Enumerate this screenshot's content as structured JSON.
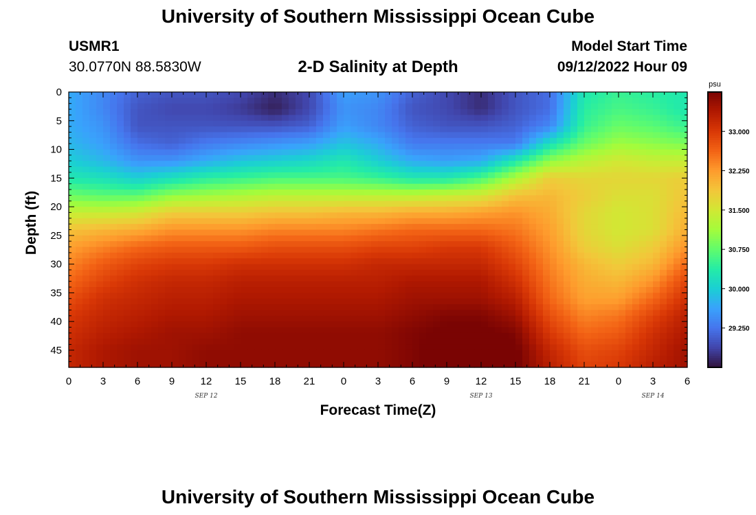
{
  "page": {
    "title": "University of Southern Mississippi Ocean Cube",
    "station_id": "USMR1",
    "coords": "30.0770N  88.5830W",
    "subtitle": "2-D Salinity at Depth",
    "model_start_label": "Model Start Time",
    "model_start_value": "09/12/2022 Hour 09",
    "footer_title": "University of Southern Mississippi Ocean Cube"
  },
  "colors": {
    "colormap": [
      "#30123b",
      "#4145ab",
      "#4675ed",
      "#39a2fc",
      "#1bcfd4",
      "#24eca6",
      "#61fc6c",
      "#a4fc3b",
      "#d1e834",
      "#f3c63a",
      "#fe9b2d",
      "#f36315",
      "#d93806",
      "#b11901",
      "#7a0403"
    ]
  },
  "chart_data": {
    "type": "heatmap",
    "xlabel": "Forecast Time(Z)",
    "ylabel": "Depth (ft)",
    "colorbar_unit": "psu",
    "x_tick_labels": [
      "0",
      "3",
      "6",
      "9",
      "12",
      "15",
      "18",
      "21",
      "0",
      "3",
      "6",
      "9",
      "12",
      "15",
      "18",
      "21",
      "0",
      "3",
      "6"
    ],
    "date_labels": [
      {
        "text": "SEP 12",
        "x_hour": 12
      },
      {
        "text": "SEP 13",
        "x_hour": 36
      },
      {
        "text": "SEP 14",
        "x_hour": 51
      }
    ],
    "x_range_hours": [
      0,
      54
    ],
    "y_ticks": [
      "0",
      "5",
      "10",
      "15",
      "20",
      "25",
      "30",
      "35",
      "40",
      "45"
    ],
    "y_range_ft": [
      0,
      48
    ],
    "colorbar_ticks": [
      "33.000",
      "32.250",
      "31.500",
      "30.750",
      "30.000",
      "29.250"
    ],
    "colorbar_tick_values": [
      33.0,
      32.25,
      31.5,
      30.75,
      30.0,
      29.25
    ],
    "colorbar_range": [
      28.5,
      33.75
    ],
    "depth_rows_ft": [
      0,
      3,
      6,
      9,
      12,
      15,
      18,
      21,
      24,
      27,
      30,
      33,
      36,
      39,
      42,
      45,
      48
    ],
    "time_cols_hours": [
      0,
      3,
      6,
      9,
      12,
      15,
      18,
      21,
      24,
      27,
      30,
      33,
      36,
      39,
      42,
      45,
      48,
      51,
      54
    ],
    "salinity_psu": [
      [
        29.7,
        29.4,
        29.1,
        29.0,
        29.0,
        28.9,
        28.7,
        28.9,
        29.6,
        29.5,
        29.1,
        28.9,
        28.7,
        29.0,
        29.2,
        30.3,
        30.5,
        30.4,
        30.3
      ],
      [
        29.7,
        29.4,
        29.0,
        28.9,
        28.9,
        28.8,
        28.6,
        28.9,
        29.5,
        29.4,
        29.0,
        28.9,
        28.7,
        29.0,
        29.2,
        30.4,
        30.6,
        30.5,
        30.3
      ],
      [
        29.7,
        29.5,
        29.0,
        29.0,
        29.0,
        29.0,
        29.0,
        29.1,
        29.6,
        29.4,
        29.1,
        29.0,
        29.0,
        29.1,
        29.4,
        30.5,
        30.8,
        30.7,
        30.5
      ],
      [
        29.8,
        29.6,
        29.2,
        29.1,
        29.3,
        29.4,
        29.5,
        29.6,
        29.9,
        29.7,
        29.3,
        29.3,
        29.3,
        29.3,
        30.2,
        30.8,
        31.1,
        31.0,
        30.9
      ],
      [
        30.0,
        29.8,
        29.5,
        29.5,
        29.7,
        29.9,
        30.0,
        30.1,
        30.3,
        30.0,
        29.7,
        29.6,
        29.7,
        30.3,
        31.0,
        31.3,
        31.5,
        31.4,
        31.4
      ],
      [
        30.3,
        30.2,
        30.0,
        30.2,
        30.4,
        30.5,
        30.6,
        30.6,
        30.6,
        30.5,
        30.3,
        30.3,
        30.6,
        31.2,
        31.8,
        31.7,
        31.7,
        31.7,
        31.8
      ],
      [
        30.8,
        30.7,
        30.7,
        31.0,
        31.1,
        31.2,
        31.3,
        31.3,
        31.3,
        31.3,
        31.3,
        31.4,
        31.5,
        31.9,
        32.0,
        31.8,
        31.6,
        31.6,
        31.9
      ],
      [
        31.4,
        31.4,
        31.5,
        31.8,
        31.8,
        31.8,
        31.9,
        31.9,
        32.0,
        32.0,
        32.1,
        32.1,
        32.2,
        32.3,
        32.1,
        31.7,
        31.5,
        31.6,
        32.0
      ],
      [
        31.9,
        32.0,
        32.1,
        32.3,
        32.3,
        32.3,
        32.4,
        32.4,
        32.4,
        32.5,
        32.6,
        32.6,
        32.6,
        32.5,
        32.2,
        31.7,
        31.5,
        31.6,
        32.1
      ],
      [
        32.2,
        32.4,
        32.6,
        32.7,
        32.7,
        32.7,
        32.8,
        32.8,
        32.8,
        32.9,
        32.9,
        33.0,
        33.0,
        32.7,
        32.3,
        31.8,
        31.6,
        31.8,
        32.3
      ],
      [
        32.4,
        32.7,
        32.9,
        33.0,
        33.0,
        33.1,
        33.1,
        33.1,
        33.1,
        33.2,
        33.2,
        33.2,
        33.2,
        32.9,
        32.4,
        32.0,
        31.8,
        32.0,
        32.6
      ],
      [
        32.6,
        32.9,
        33.1,
        33.2,
        33.2,
        33.3,
        33.3,
        33.3,
        33.3,
        33.3,
        33.4,
        33.4,
        33.4,
        33.1,
        32.5,
        32.1,
        32.0,
        32.3,
        32.9
      ],
      [
        32.8,
        33.1,
        33.2,
        33.3,
        33.3,
        33.4,
        33.4,
        33.4,
        33.4,
        33.4,
        33.5,
        33.5,
        33.5,
        33.3,
        32.6,
        32.2,
        32.2,
        32.6,
        33.1
      ],
      [
        33.0,
        33.2,
        33.3,
        33.4,
        33.4,
        33.5,
        33.5,
        33.5,
        33.5,
        33.5,
        33.6,
        33.7,
        33.7,
        33.5,
        32.8,
        32.4,
        32.5,
        32.9,
        33.3
      ],
      [
        33.1,
        33.3,
        33.4,
        33.5,
        33.5,
        33.6,
        33.6,
        33.6,
        33.6,
        33.6,
        33.7,
        33.8,
        33.8,
        33.7,
        33.0,
        32.6,
        32.7,
        33.1,
        33.4
      ],
      [
        33.2,
        33.4,
        33.5,
        33.5,
        33.6,
        33.6,
        33.6,
        33.6,
        33.6,
        33.6,
        33.7,
        33.9,
        33.9,
        33.8,
        33.2,
        32.8,
        32.9,
        33.2,
        33.5
      ],
      [
        33.2,
        33.4,
        33.5,
        33.5,
        33.6,
        33.6,
        33.6,
        33.6,
        33.6,
        33.6,
        33.7,
        33.9,
        33.9,
        33.8,
        33.3,
        32.9,
        33.0,
        33.3,
        33.5
      ]
    ]
  }
}
